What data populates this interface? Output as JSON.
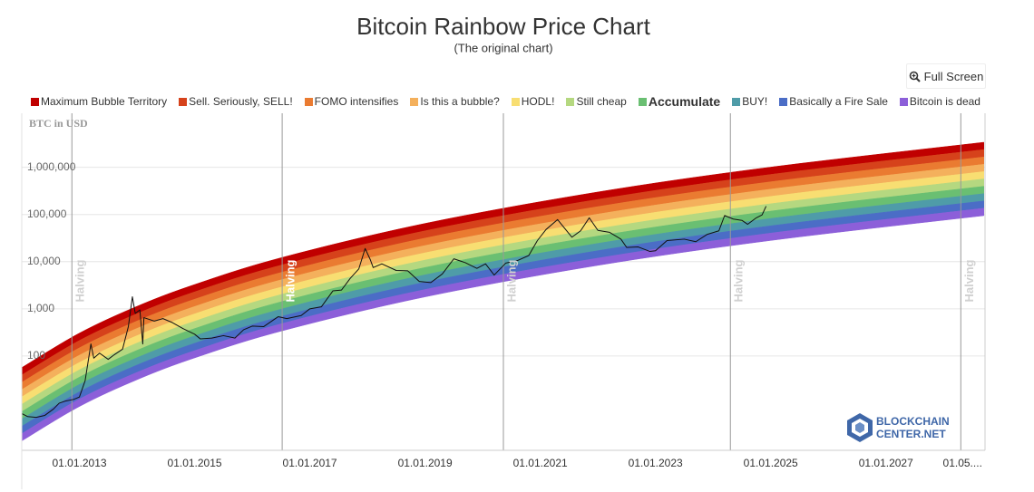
{
  "chart_data": {
    "type": "rainbow",
    "title": "Bitcoin Rainbow Price Chart",
    "subtitle": "(The original chart)",
    "y_label": "BTC in USD",
    "full_screen": "Full Screen",
    "log_y": true,
    "grid": true,
    "xlim": [
      2012,
      2028.72
    ],
    "ylim": [
      1,
      14000000
    ],
    "yticks": [
      100,
      {
        "value": 1000,
        "label": "1,000"
      },
      {
        "value": 10000,
        "label": "10,000"
      },
      {
        "value": 100000,
        "label": "100,000"
      },
      {
        "value": 1000000,
        "label": "1,000,000"
      }
    ],
    "xticks": [
      {
        "value": 2013,
        "label": "01.01.2013"
      },
      {
        "value": 2015,
        "label": "01.01.2015"
      },
      {
        "value": 2017,
        "label": "01.01.2017"
      },
      {
        "value": 2019,
        "label": "01.01.2019"
      },
      {
        "value": 2021,
        "label": "01.01.2021"
      },
      {
        "value": 2023,
        "label": "01.01.2023"
      },
      {
        "value": 2025,
        "label": "01.01.2025"
      },
      {
        "value": 2027,
        "label": "01.01.2027"
      },
      {
        "value": 2028.33,
        "label": "01.05...."
      }
    ],
    "halving_label": "Halving",
    "halvings": [
      2012.87,
      2016.52,
      2020.36,
      2024.3,
      2028.3
    ],
    "band_x": [
      2012,
      2013,
      2014,
      2015,
      2016.5,
      2019,
      2022,
      2025,
      2028.7
    ],
    "bands": [
      {
        "name": "Maximum Bubble Territory",
        "color": "#c00000",
        "values": [
          56.8,
          305,
          1130,
          3270,
          12100,
          64600,
          300000,
          1010000,
          3400000
        ]
      },
      {
        "name": "Sell. Seriously, SELL!",
        "color": "#d6421b",
        "values": [
          39.6,
          213,
          789,
          2290,
          8430,
          45100,
          209000,
          706000,
          2380000
        ]
      },
      {
        "name": "FOMO intensifies",
        "color": "#ea7b31",
        "values": [
          27.7,
          149,
          552,
          1600,
          5900,
          31600,
          147000,
          494000,
          1660000
        ]
      },
      {
        "name": "Is this a bubble?",
        "color": "#f4b05c",
        "values": [
          19.4,
          104,
          385,
          1120,
          4120,
          22000,
          102000,
          345000,
          1160000
        ]
      },
      {
        "name": "HODL!",
        "color": "#f8de72",
        "values": [
          13.6,
          72.9,
          270,
          782,
          2880,
          15400,
          71600,
          242000,
          813000
        ]
      },
      {
        "name": "Still cheap",
        "color": "#b5d880",
        "values": [
          9.46,
          50.9,
          188,
          546,
          2010,
          10800,
          50000,
          169000,
          568000
        ]
      },
      {
        "name": "Accumulate",
        "color": "#6abf72",
        "values": [
          6.61,
          35.6,
          132,
          381,
          1410,
          7520,
          34900,
          118000,
          396000
        ]
      },
      {
        "name": "BUY!",
        "color": "#4f9ca8",
        "values": [
          4.62,
          24.9,
          92.0,
          267,
          984,
          5260,
          24400,
          82400,
          277000
        ]
      },
      {
        "name": "Basically a Fire Sale",
        "color": "#4b6dc6",
        "values": [
          3.23,
          17.4,
          64.3,
          186,
          687,
          3670,
          17100,
          57500,
          194000
        ]
      },
      {
        "name": "Bitcoin is dead",
        "color": "#8c5fd9",
        "values": [
          2.26,
          12.2,
          45.0,
          130,
          481,
          2570,
          11900,
          40300,
          136000
        ]
      }
    ],
    "band_floor": [
      1.58,
      8.49,
      31.4,
      91.0,
      336,
      1790,
      8340,
      28100,
      94600
    ],
    "price": {
      "color": "#111111",
      "x": [
        2012.0,
        2012.1,
        2012.25,
        2012.4,
        2012.55,
        2012.65,
        2012.75,
        2012.9,
        2013.0,
        2013.1,
        2013.2,
        2013.25,
        2013.35,
        2013.5,
        2013.6,
        2013.75,
        2013.85,
        2013.92,
        2013.97,
        2014.05,
        2014.1,
        2014.12,
        2014.3,
        2014.45,
        2014.6,
        2014.8,
        2015.0,
        2015.1,
        2015.3,
        2015.5,
        2015.7,
        2015.85,
        2016.0,
        2016.2,
        2016.45,
        2016.6,
        2016.85,
        2017.0,
        2017.2,
        2017.4,
        2017.55,
        2017.7,
        2017.85,
        2017.96,
        2018.05,
        2018.1,
        2018.25,
        2018.5,
        2018.7,
        2018.9,
        2019.1,
        2019.3,
        2019.5,
        2019.7,
        2019.9,
        2020.05,
        2020.2,
        2020.4,
        2020.6,
        2020.8,
        2020.95,
        2021.1,
        2021.3,
        2021.4,
        2021.55,
        2021.7,
        2021.85,
        2022.0,
        2022.2,
        2022.4,
        2022.5,
        2022.7,
        2022.9,
        2023.0,
        2023.2,
        2023.5,
        2023.7,
        2023.9,
        2024.1,
        2024.2,
        2024.35,
        2024.5,
        2024.6,
        2024.75,
        2024.85,
        2024.92
      ],
      "values": [
        6,
        5.2,
        5,
        5.5,
        7.5,
        10,
        11,
        12,
        13.5,
        30,
        180,
        90,
        115,
        85,
        105,
        140,
        420,
        1800,
        800,
        950,
        180,
        650,
        550,
        620,
        520,
        380,
        290,
        230,
        240,
        270,
        240,
        360,
        430,
        420,
        680,
        620,
        720,
        1000,
        1100,
        2400,
        2500,
        4400,
        7000,
        19000,
        11000,
        7500,
        9000,
        6500,
        6400,
        3800,
        3600,
        5500,
        11500,
        9500,
        7200,
        9000,
        5200,
        9300,
        10500,
        13500,
        28000,
        48000,
        78000,
        55000,
        33000,
        45000,
        85000,
        46000,
        42000,
        30000,
        20000,
        20500,
        16500,
        17000,
        28000,
        30000,
        26500,
        38000,
        45000,
        95000,
        80000,
        75000,
        62000,
        85000,
        98000,
        150000
      ]
    },
    "watermark": [
      "BLOCKCHAIN",
      "CENTER.NET"
    ]
  }
}
